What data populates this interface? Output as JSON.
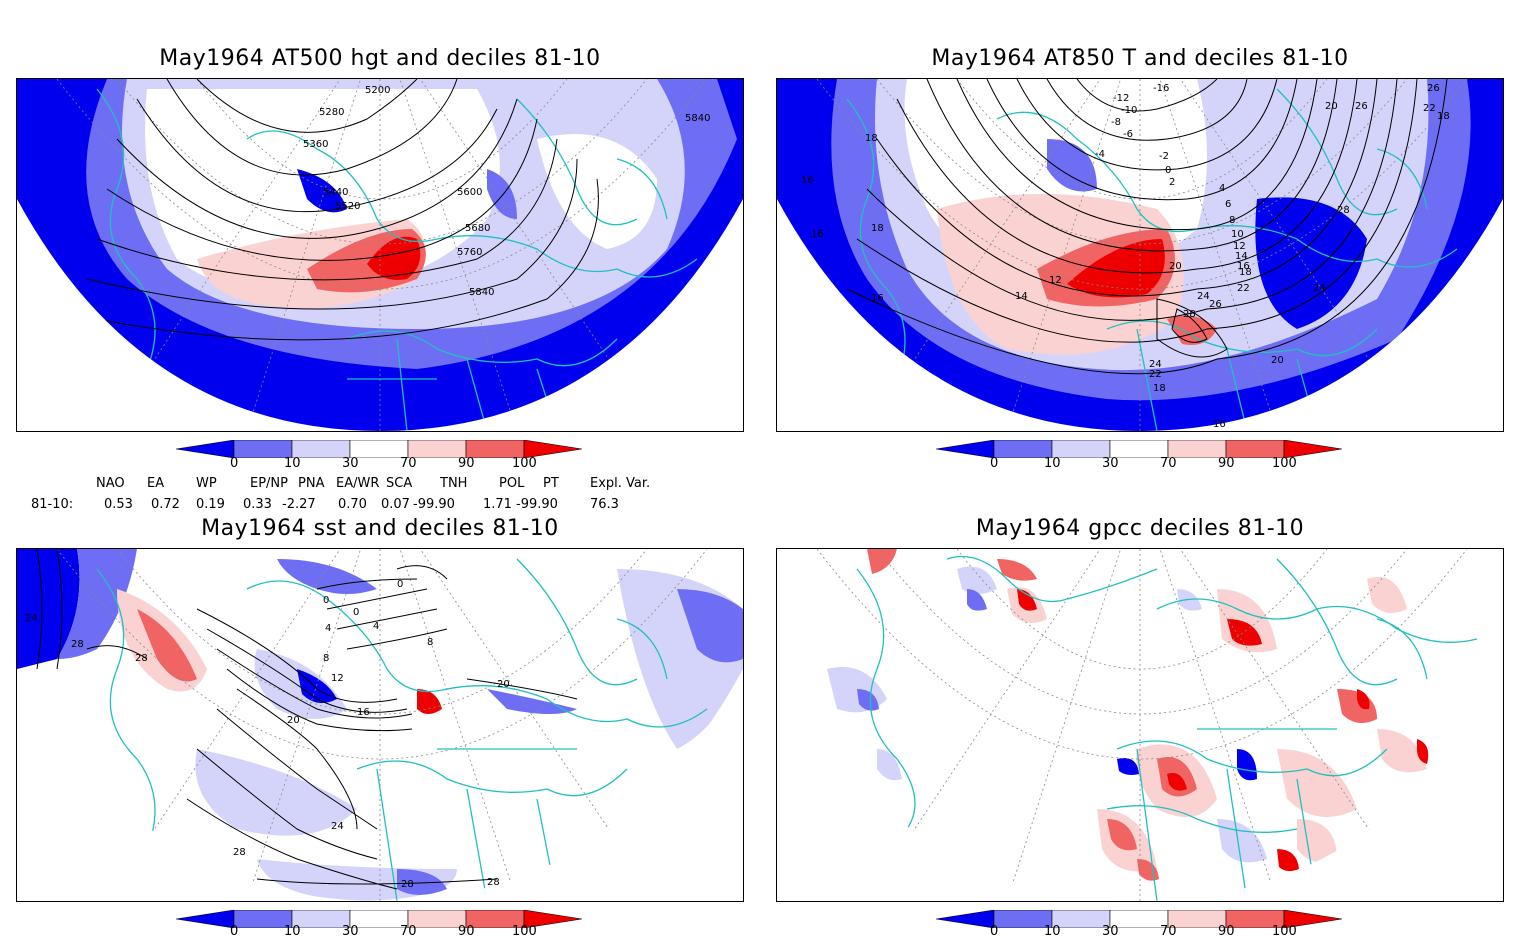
{
  "panels": [
    {
      "title": "May1964 AT500 hgt and deciles 81-10",
      "contour_labels": [
        "5200",
        "5280",
        "5360",
        "5440",
        "5520",
        "5600",
        "5680",
        "5760",
        "5840",
        "5840"
      ]
    },
    {
      "title": "May1964 AT850 T and deciles 81-10",
      "contour_labels": [
        "-16",
        "-12",
        "-10",
        "-8",
        "-6",
        "-4",
        "-2",
        "0",
        "2",
        "4",
        "6",
        "8",
        "10",
        "12",
        "14",
        "16",
        "18",
        "20",
        "22",
        "24",
        "26",
        "28",
        "18",
        "16",
        "16",
        "18",
        "16",
        "12",
        "14",
        "20",
        "24",
        "26",
        "22",
        "26",
        "28",
        "24",
        "22",
        "20",
        "18",
        "16",
        "18"
      ]
    },
    {
      "title": "May1964 sst and deciles 81-10",
      "contour_labels": [
        "24",
        "28",
        "28",
        "0",
        "0",
        "0",
        "4",
        "4",
        "8",
        "8",
        "12",
        "16",
        "20",
        "20",
        "24",
        "28",
        "28",
        "28"
      ]
    },
    {
      "title": "May1964 gpcc deciles 81-10",
      "contour_labels": []
    }
  ],
  "colorbar": {
    "ticks": [
      "0",
      "10",
      "30",
      "70",
      "90",
      "100"
    ],
    "colors": [
      "#0000ee",
      "#6e6ef5",
      "#d4d4fa",
      "#ffffff",
      "#fbd2d2",
      "#f06464",
      "#ee0000"
    ]
  },
  "indices": {
    "headers": [
      "NAO",
      "EA",
      "WP",
      "EP/NP",
      "PNA",
      "EA/WR",
      "SCA",
      "TNH",
      "POL",
      "PT",
      "Expl. Var."
    ],
    "row_label": "81-10:",
    "values": [
      "0.53",
      "0.72",
      "0.19",
      "0.33",
      "-2.27",
      "0.70",
      "0.07",
      "-99.90",
      "1.71",
      "-99.90",
      "76.3"
    ]
  },
  "colors": {
    "coast": "#20c0c0",
    "strong_low": "#0000ee",
    "mid_low": "#6e6ef5",
    "weak_low": "#d4d4fa",
    "weak_high": "#fbd2d2",
    "mid_high": "#f06464",
    "strong_high": "#ee0000"
  }
}
